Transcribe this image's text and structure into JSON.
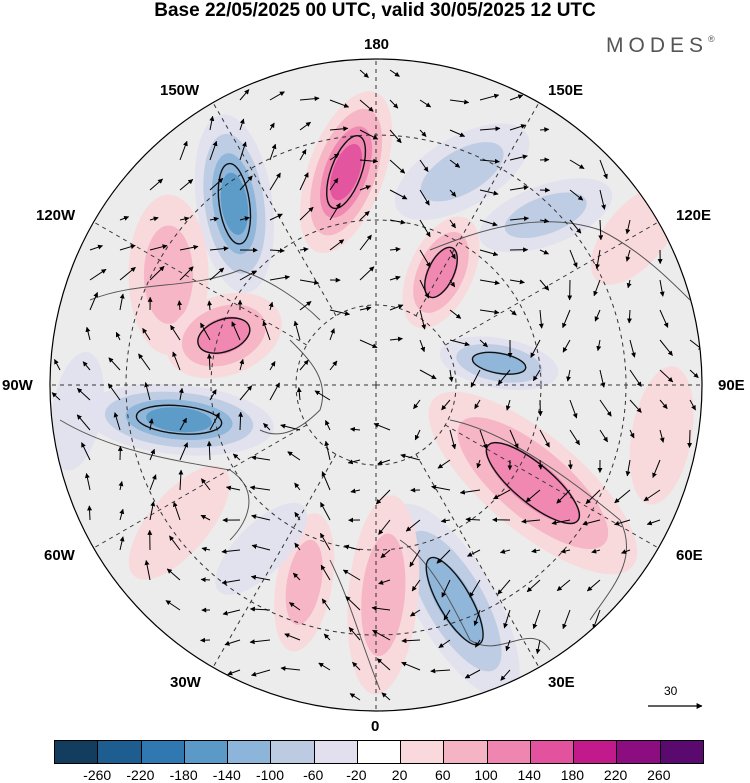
{
  "header": {
    "title": "Base 22/05/2025 00 UTC, valid 30/05/2025 12 UTC",
    "brand": "MODES",
    "brand_mark": "®"
  },
  "map": {
    "projection": "polar-stereographic-north",
    "longitude_labels": {
      "top": "180",
      "top_right": "150E",
      "right_upper": "120E",
      "right": "90E",
      "right_lower": "60E",
      "bottom_right": "30E",
      "bottom": "0",
      "bottom_left": "30W",
      "left_lower": "60W",
      "left": "90W",
      "left_upper": "120W",
      "top_left": "150W"
    },
    "vector_reference": "30",
    "graticule": "dashed"
  },
  "colorbar": {
    "ticks": [
      "-260",
      "-220",
      "-180",
      "-140",
      "-100",
      "-60",
      "-20",
      "20",
      "60",
      "100",
      "140",
      "180",
      "220",
      "260"
    ],
    "colors": [
      "#123d5e",
      "#1d5d8f",
      "#2f78b1",
      "#5b9ac8",
      "#8db4d9",
      "#bccbe2",
      "#e2e0ee",
      "#ffffff",
      "#f9d9dc",
      "#f5b4c3",
      "#ef86b1",
      "#e3529e",
      "#c21a8b",
      "#8b0d7f",
      "#5a0a6f"
    ]
  }
}
